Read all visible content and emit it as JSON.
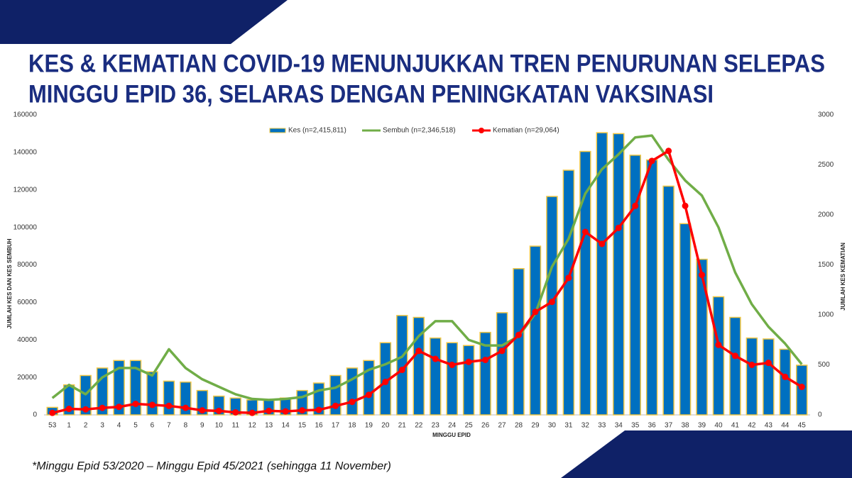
{
  "chart_data": {
    "type": "combo",
    "title": [
      "KES & KEMATIAN COVID-19 MENUNJUKKAN TREN PENURUNAN SELEPAS",
      "MINGGU EPID 36, SELARAS DENGAN PENINGKATAN VAKSINASI"
    ],
    "xlabel": "MINGGU EPID",
    "ylabel": "JUMLAH KES  DAN KES SEMBUH",
    "y2label": "JUMLAH KES KEMATIAN",
    "footnote": "*Minggu Epid 53/2020 – Minggu Epid 45/2021 (sehingga 11 November)",
    "categories": [
      "53",
      "1",
      "2",
      "3",
      "4",
      "5",
      "6",
      "7",
      "8",
      "9",
      "10",
      "11",
      "12",
      "13",
      "14",
      "15",
      "16",
      "17",
      "18",
      "19",
      "20",
      "21",
      "22",
      "23",
      "24",
      "25",
      "26",
      "27",
      "28",
      "29",
      "30",
      "31",
      "32",
      "33",
      "34",
      "35",
      "36",
      "37",
      "38",
      "39",
      "40",
      "41",
      "42",
      "43",
      "44",
      "45"
    ],
    "ylim": [
      0,
      160000
    ],
    "yticks": [
      0,
      20000,
      40000,
      60000,
      80000,
      100000,
      120000,
      140000,
      160000
    ],
    "y2lim": [
      0,
      3000
    ],
    "y2ticks": [
      0,
      500,
      1000,
      1500,
      2000,
      2500,
      3000
    ],
    "grid": false,
    "legend": "top",
    "series": [
      {
        "name": "Kes (n=2,415,811)",
        "type": "bar",
        "color": "#0070c0",
        "edgecolor": "#f2c744",
        "values": [
          4000,
          16000,
          21000,
          25000,
          29000,
          29000,
          23000,
          18000,
          17500,
          13000,
          10000,
          9000,
          8000,
          8000,
          9000,
          13000,
          17000,
          21000,
          25000,
          29000,
          38500,
          53000,
          52000,
          41000,
          38500,
          37000,
          44000,
          54500,
          78000,
          90000,
          116500,
          130500,
          140500,
          150500,
          150000,
          138500,
          136000,
          122000,
          102000,
          83000,
          63000,
          52000,
          41000,
          40500,
          35000,
          26500
        ]
      },
      {
        "name": "Sembuh (n=2,346,518)",
        "type": "line",
        "color": "#70ad47",
        "values": [
          9000,
          16000,
          11000,
          20000,
          25000,
          25000,
          21000,
          35000,
          25000,
          19000,
          15000,
          11000,
          8500,
          8000,
          8500,
          9500,
          13000,
          14500,
          19000,
          24000,
          27000,
          31000,
          42000,
          50000,
          50000,
          40000,
          37000,
          37000,
          42000,
          54000,
          79000,
          94000,
          118000,
          131000,
          139000,
          148000,
          149000,
          136000,
          125000,
          117000,
          100000,
          76000,
          59000,
          47000,
          38000,
          27000
        ]
      },
      {
        "name": "Kematian (n=29,064)",
        "type": "line",
        "axis": "y2",
        "marker": true,
        "color": "#ff0000",
        "values": [
          20,
          60,
          55,
          70,
          80,
          110,
          100,
          90,
          70,
          45,
          40,
          25,
          20,
          40,
          35,
          45,
          50,
          90,
          130,
          200,
          330,
          450,
          640,
          560,
          500,
          530,
          550,
          640,
          800,
          1030,
          1130,
          1370,
          1830,
          1710,
          1870,
          2090,
          2540,
          2640,
          2090,
          1400,
          700,
          590,
          500,
          520,
          380,
          280
        ]
      }
    ]
  }
}
